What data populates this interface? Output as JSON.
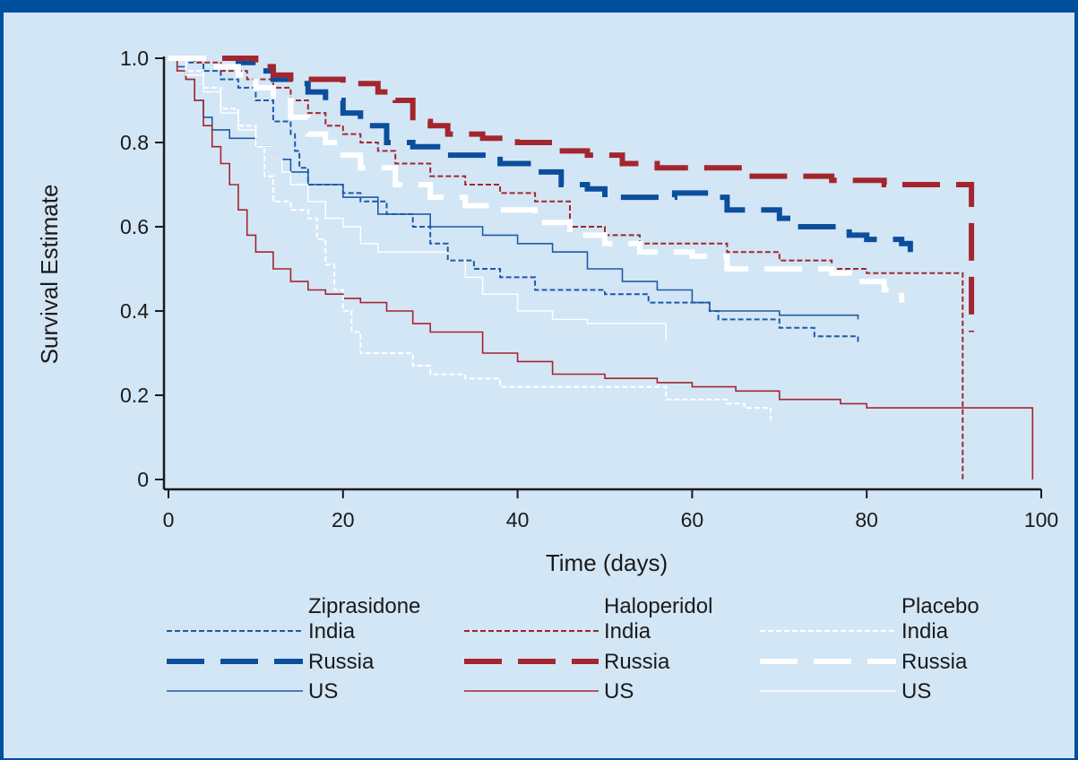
{
  "chart_data": {
    "type": "line",
    "title": "",
    "xlabel": "Time (days)",
    "ylabel": "Survival Estimate",
    "xlim": [
      0,
      100
    ],
    "ylim": [
      0,
      1.0
    ],
    "xticks": [
      "0",
      "20",
      "40",
      "60",
      "80",
      "100"
    ],
    "yticks": [
      "0",
      "0.2",
      "0.4",
      "0.6",
      "0.8",
      "1.0"
    ],
    "grid": false,
    "legend_groups": [
      "Ziprasidone",
      "Haloperidol",
      "Placebo"
    ],
    "legend_labels": [
      "India",
      "Russia",
      "US"
    ],
    "series": [
      {
        "group": "Ziprasidone",
        "name": "India",
        "color": "#1f5aa6",
        "style": "short-dash",
        "width": 2,
        "points": [
          [
            0,
            1.0
          ],
          [
            2,
            0.99
          ],
          [
            4,
            0.97
          ],
          [
            6,
            0.95
          ],
          [
            8,
            0.93
          ],
          [
            10,
            0.9
          ],
          [
            12,
            0.85
          ],
          [
            14,
            0.82
          ],
          [
            14.5,
            0.78
          ],
          [
            15,
            0.74
          ],
          [
            16,
            0.7
          ],
          [
            20,
            0.68
          ],
          [
            22,
            0.66
          ],
          [
            25,
            0.63
          ],
          [
            28,
            0.6
          ],
          [
            30,
            0.56
          ],
          [
            32,
            0.52
          ],
          [
            35,
            0.5
          ],
          [
            38,
            0.48
          ],
          [
            42,
            0.45
          ],
          [
            50,
            0.44
          ],
          [
            55,
            0.42
          ],
          [
            62,
            0.4
          ],
          [
            63,
            0.38
          ],
          [
            70,
            0.36
          ],
          [
            74,
            0.34
          ],
          [
            79,
            0.33
          ],
          [
            79,
            0.32
          ]
        ]
      },
      {
        "group": "Ziprasidone",
        "name": "Russia",
        "color": "#0b4e9c",
        "style": "long-dash",
        "width": 6,
        "points": [
          [
            0,
            1.0
          ],
          [
            8,
            0.99
          ],
          [
            10,
            0.97
          ],
          [
            12,
            0.95
          ],
          [
            14,
            0.94
          ],
          [
            16,
            0.92
          ],
          [
            18,
            0.9
          ],
          [
            20,
            0.87
          ],
          [
            22,
            0.84
          ],
          [
            25,
            0.8
          ],
          [
            28,
            0.79
          ],
          [
            32,
            0.77
          ],
          [
            38,
            0.75
          ],
          [
            42,
            0.73
          ],
          [
            45,
            0.7
          ],
          [
            48,
            0.69
          ],
          [
            50,
            0.67
          ],
          [
            55,
            0.67
          ],
          [
            58,
            0.68
          ],
          [
            62,
            0.67
          ],
          [
            64,
            0.64
          ],
          [
            70,
            0.62
          ],
          [
            72,
            0.6
          ],
          [
            78,
            0.58
          ],
          [
            80,
            0.57
          ],
          [
            84,
            0.56
          ],
          [
            85,
            0.54
          ]
        ]
      },
      {
        "group": "Ziprasidone",
        "name": "US",
        "color": "#1f5aa6",
        "style": "solid",
        "width": 1.6,
        "points": [
          [
            0,
            1.0
          ],
          [
            1,
            0.98
          ],
          [
            2,
            0.95
          ],
          [
            3,
            0.9
          ],
          [
            4,
            0.86
          ],
          [
            5,
            0.83
          ],
          [
            7,
            0.81
          ],
          [
            10,
            0.79
          ],
          [
            12,
            0.76
          ],
          [
            14,
            0.73
          ],
          [
            16,
            0.7
          ],
          [
            20,
            0.67
          ],
          [
            24,
            0.63
          ],
          [
            30,
            0.6
          ],
          [
            36,
            0.58
          ],
          [
            40,
            0.56
          ],
          [
            44,
            0.54
          ],
          [
            48,
            0.5
          ],
          [
            52,
            0.47
          ],
          [
            56,
            0.45
          ],
          [
            60,
            0.42
          ],
          [
            62,
            0.4
          ],
          [
            70,
            0.39
          ],
          [
            79,
            0.39
          ],
          [
            79,
            0.38
          ]
        ]
      },
      {
        "group": "Haloperidol",
        "name": "India",
        "color": "#a3262e",
        "style": "short-dash",
        "width": 2,
        "points": [
          [
            0,
            1.0
          ],
          [
            3,
            0.99
          ],
          [
            6,
            0.97
          ],
          [
            9,
            0.95
          ],
          [
            12,
            0.93
          ],
          [
            14,
            0.9
          ],
          [
            16,
            0.87
          ],
          [
            18,
            0.84
          ],
          [
            20,
            0.82
          ],
          [
            22,
            0.8
          ],
          [
            24,
            0.78
          ],
          [
            26,
            0.75
          ],
          [
            30,
            0.72
          ],
          [
            34,
            0.7
          ],
          [
            38,
            0.68
          ],
          [
            42,
            0.66
          ],
          [
            46,
            0.6
          ],
          [
            50,
            0.58
          ],
          [
            54,
            0.56
          ],
          [
            58,
            0.56
          ],
          [
            64,
            0.54
          ],
          [
            70,
            0.52
          ],
          [
            76,
            0.5
          ],
          [
            80,
            0.49
          ],
          [
            85,
            0.49
          ],
          [
            91,
            0.49
          ],
          [
            91,
            0.0
          ]
        ]
      },
      {
        "group": "Haloperidol",
        "name": "Russia",
        "color": "#a3262e",
        "style": "long-dash",
        "width": 6,
        "points": [
          [
            0,
            1.0
          ],
          [
            10,
            0.98
          ],
          [
            12,
            0.96
          ],
          [
            14,
            0.95
          ],
          [
            20,
            0.94
          ],
          [
            24,
            0.92
          ],
          [
            26,
            0.9
          ],
          [
            28,
            0.85
          ],
          [
            30,
            0.84
          ],
          [
            32,
            0.82
          ],
          [
            36,
            0.81
          ],
          [
            40,
            0.8
          ],
          [
            44,
            0.78
          ],
          [
            48,
            0.77
          ],
          [
            52,
            0.75
          ],
          [
            56,
            0.74
          ],
          [
            60,
            0.74
          ],
          [
            66,
            0.72
          ],
          [
            74,
            0.72
          ],
          [
            76,
            0.71
          ],
          [
            82,
            0.7
          ],
          [
            90,
            0.7
          ],
          [
            92,
            0.68
          ],
          [
            92,
            0.35
          ]
        ]
      },
      {
        "group": "Haloperidol",
        "name": "US",
        "color": "#a3262e",
        "style": "solid",
        "width": 1.6,
        "points": [
          [
            0,
            1.0
          ],
          [
            1,
            0.97
          ],
          [
            2,
            0.95
          ],
          [
            3,
            0.9
          ],
          [
            4,
            0.84
          ],
          [
            5,
            0.79
          ],
          [
            6,
            0.75
          ],
          [
            7,
            0.7
          ],
          [
            8,
            0.64
          ],
          [
            9,
            0.58
          ],
          [
            10,
            0.54
          ],
          [
            12,
            0.5
          ],
          [
            14,
            0.47
          ],
          [
            16,
            0.45
          ],
          [
            18,
            0.44
          ],
          [
            20,
            0.43
          ],
          [
            22,
            0.42
          ],
          [
            25,
            0.4
          ],
          [
            28,
            0.37
          ],
          [
            30,
            0.35
          ],
          [
            35,
            0.35
          ],
          [
            36,
            0.3
          ],
          [
            40,
            0.28
          ],
          [
            44,
            0.25
          ],
          [
            50,
            0.24
          ],
          [
            56,
            0.23
          ],
          [
            60,
            0.22
          ],
          [
            65,
            0.21
          ],
          [
            70,
            0.19
          ],
          [
            77,
            0.18
          ],
          [
            80,
            0.17
          ],
          [
            88,
            0.17
          ],
          [
            99,
            0.17
          ],
          [
            99,
            0.0
          ]
        ]
      },
      {
        "group": "Placebo",
        "name": "India",
        "color": "#ffffff",
        "style": "short-dash",
        "width": 2,
        "points": [
          [
            0,
            1.0
          ],
          [
            2,
            0.97
          ],
          [
            4,
            0.93
          ],
          [
            6,
            0.88
          ],
          [
            8,
            0.84
          ],
          [
            10,
            0.79
          ],
          [
            11,
            0.72
          ],
          [
            12,
            0.66
          ],
          [
            14,
            0.64
          ],
          [
            16,
            0.62
          ],
          [
            17,
            0.57
          ],
          [
            18,
            0.51
          ],
          [
            19,
            0.45
          ],
          [
            20,
            0.4
          ],
          [
            21,
            0.35
          ],
          [
            22,
            0.3
          ],
          [
            26,
            0.3
          ],
          [
            28,
            0.27
          ],
          [
            30,
            0.25
          ],
          [
            34,
            0.24
          ],
          [
            38,
            0.22
          ],
          [
            46,
            0.22
          ],
          [
            55,
            0.22
          ],
          [
            57,
            0.19
          ],
          [
            64,
            0.18
          ],
          [
            66,
            0.17
          ],
          [
            69,
            0.16
          ],
          [
            69,
            0.14
          ]
        ]
      },
      {
        "group": "Placebo",
        "name": "Russia",
        "color": "#ffffff",
        "style": "long-dash",
        "width": 6,
        "points": [
          [
            0,
            1.0
          ],
          [
            5,
            0.98
          ],
          [
            8,
            0.96
          ],
          [
            10,
            0.93
          ],
          [
            12,
            0.9
          ],
          [
            14,
            0.86
          ],
          [
            16,
            0.82
          ],
          [
            18,
            0.8
          ],
          [
            20,
            0.77
          ],
          [
            22,
            0.74
          ],
          [
            26,
            0.7
          ],
          [
            30,
            0.67
          ],
          [
            34,
            0.65
          ],
          [
            38,
            0.64
          ],
          [
            42,
            0.61
          ],
          [
            46,
            0.58
          ],
          [
            50,
            0.56
          ],
          [
            54,
            0.54
          ],
          [
            60,
            0.53
          ],
          [
            64,
            0.5
          ],
          [
            72,
            0.5
          ],
          [
            76,
            0.49
          ],
          [
            78,
            0.47
          ],
          [
            82,
            0.45
          ],
          [
            84,
            0.42
          ]
        ]
      },
      {
        "group": "Placebo",
        "name": "US",
        "color": "#ffffff",
        "style": "solid",
        "width": 1.4,
        "points": [
          [
            0,
            1.0
          ],
          [
            2,
            0.96
          ],
          [
            4,
            0.92
          ],
          [
            6,
            0.87
          ],
          [
            8,
            0.83
          ],
          [
            10,
            0.79
          ],
          [
            12,
            0.76
          ],
          [
            13,
            0.73
          ],
          [
            14,
            0.7
          ],
          [
            16,
            0.66
          ],
          [
            18,
            0.62
          ],
          [
            20,
            0.6
          ],
          [
            22,
            0.56
          ],
          [
            24,
            0.54
          ],
          [
            30,
            0.54
          ],
          [
            32,
            0.52
          ],
          [
            34,
            0.48
          ],
          [
            36,
            0.44
          ],
          [
            40,
            0.4
          ],
          [
            44,
            0.38
          ],
          [
            48,
            0.37
          ],
          [
            50,
            0.37
          ],
          [
            57,
            0.37
          ],
          [
            57,
            0.33
          ]
        ]
      }
    ]
  }
}
